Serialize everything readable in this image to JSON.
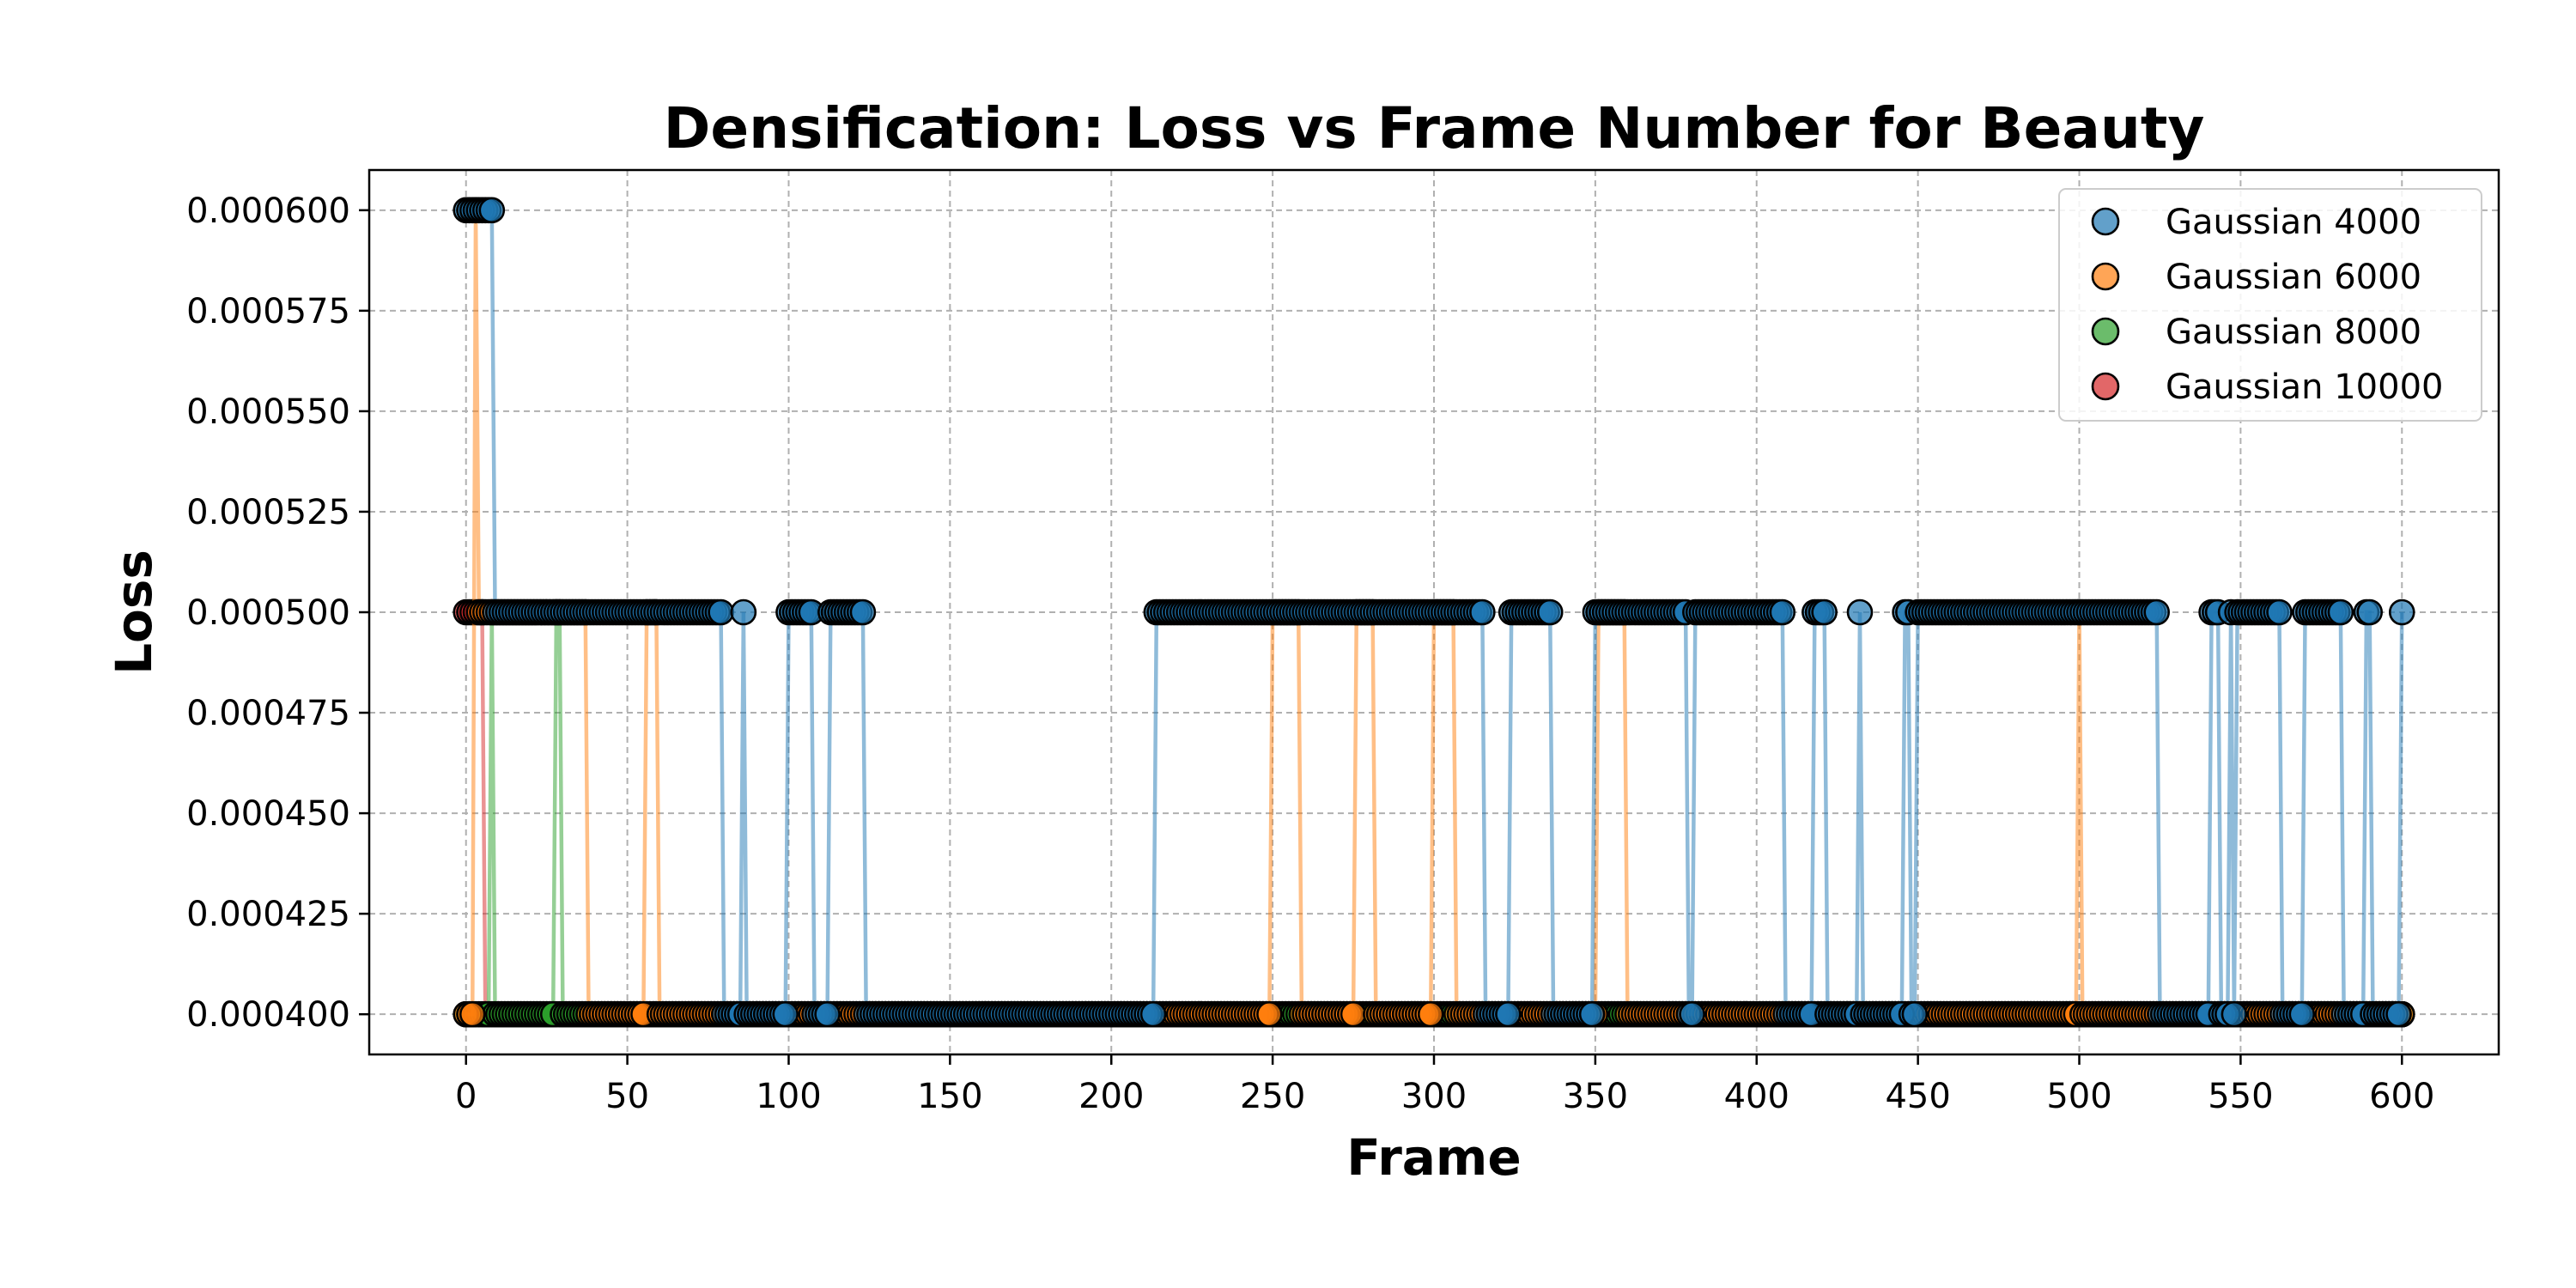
{
  "chart_data": {
    "type": "scatter",
    "title": "Densification: Loss vs Frame Number for Beauty",
    "xlabel": "Frame",
    "ylabel": "Loss",
    "xlim": [
      -30,
      630
    ],
    "ylim": [
      0.00039,
      0.00061
    ],
    "xticks": [
      0,
      50,
      100,
      150,
      200,
      250,
      300,
      350,
      400,
      450,
      500,
      550,
      600
    ],
    "yticks": [
      0.0004,
      0.000425,
      0.00045,
      0.000475,
      0.0005,
      0.000525,
      0.00055,
      0.000575,
      0.0006
    ],
    "ytick_labels": [
      "0.000400",
      "0.000425",
      "0.000450",
      "0.000475",
      "0.000500",
      "0.000525",
      "0.000550",
      "0.000575",
      "0.000600"
    ],
    "grid": true,
    "legend_position": "top-right",
    "x_max": 600,
    "values": [
      0.0004,
      0.0005,
      0.0006
    ],
    "series": [
      {
        "name": "Gaussian 4000",
        "color": "#1f77b4",
        "high_points": [
          [
            0,
            0.0006
          ],
          [
            1,
            0.0006
          ],
          [
            2,
            0.0006
          ],
          [
            3,
            0.0006
          ],
          [
            4,
            0.0006
          ],
          [
            5,
            0.0006
          ],
          [
            6,
            0.0006
          ],
          [
            7,
            0.0006
          ],
          [
            8,
            0.0006
          ]
        ],
        "mid_ranges": [
          [
            9,
            79
          ],
          [
            86,
            86
          ],
          [
            100,
            107
          ],
          [
            113,
            123
          ],
          [
            214,
            315
          ],
          [
            324,
            336
          ],
          [
            350,
            378
          ],
          [
            381,
            408
          ],
          [
            418,
            421
          ],
          [
            432,
            432
          ],
          [
            446,
            447
          ],
          [
            450,
            524
          ],
          [
            541,
            543
          ],
          [
            547,
            547
          ],
          [
            549,
            562
          ],
          [
            570,
            581
          ],
          [
            589,
            590
          ],
          [
            600,
            600
          ]
        ]
      },
      {
        "name": "Gaussian 6000",
        "color": "#ff7f0e",
        "high_points": [
          [
            3,
            0.0006
          ]
        ],
        "mid_ranges": [
          [
            4,
            37
          ],
          [
            56,
            59
          ],
          [
            250,
            258
          ],
          [
            276,
            281
          ],
          [
            300,
            306
          ],
          [
            351,
            359
          ],
          [
            500,
            500
          ]
        ]
      },
      {
        "name": "Gaussian 8000",
        "color": "#2ca02c",
        "high_points": [],
        "mid_ranges": [
          [
            8,
            8
          ],
          [
            28,
            29
          ]
        ]
      },
      {
        "name": "Gaussian 10000",
        "color": "#d62728",
        "high_points": [],
        "mid_ranges": [
          [
            0,
            5
          ]
        ]
      }
    ]
  }
}
